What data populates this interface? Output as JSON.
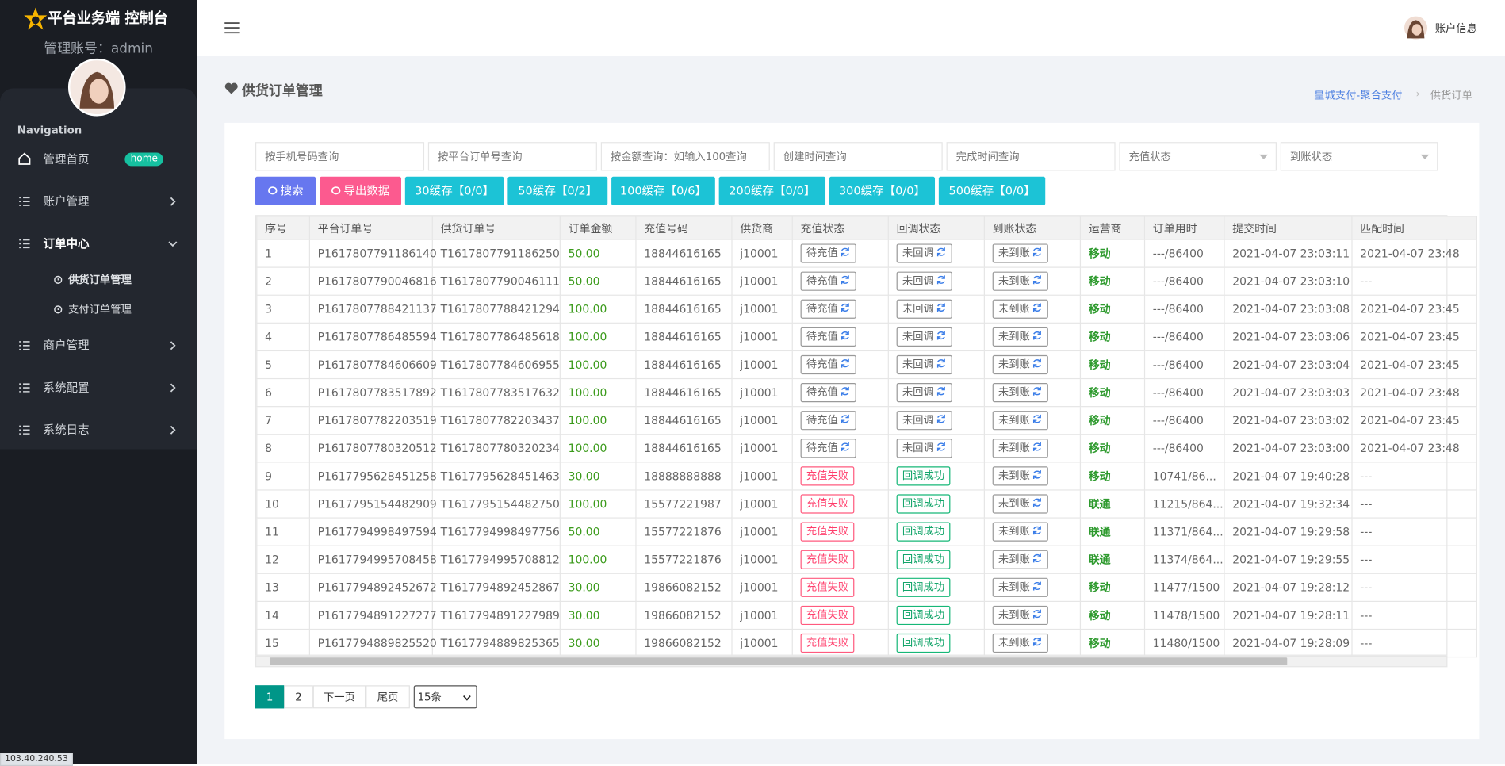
{
  "sidebar": {
    "brand": "平台业务端 控制台",
    "account": "管理账号：admin",
    "nav_title": "Navigation",
    "menu": [
      {
        "label": "管理首页",
        "badge": "home"
      },
      {
        "label": "账户管理"
      },
      {
        "label": "订单中心",
        "children": [
          "供货订单管理",
          "支付订单管理"
        ]
      },
      {
        "label": "商户管理"
      },
      {
        "label": "系统配置"
      },
      {
        "label": "系统日志"
      }
    ]
  },
  "topbar": {
    "user": "账户信息"
  },
  "page": {
    "title": "供货订单管理",
    "breadcrumb": [
      "皇城支付-聚合支付",
      "供货订单"
    ]
  },
  "filters": {
    "inputs": [
      "按手机号码查询",
      "按平台订单号查询",
      "按金额查询：如输入100查询",
      "创建时间查询",
      "完成时间查询"
    ],
    "selects": [
      "充值状态",
      "到账状态"
    ]
  },
  "buttons": [
    "搜索",
    "导出数据",
    "30缓存【0/0】",
    "50缓存【0/2】",
    "100缓存【0/6】",
    "200缓存【0/0】",
    "300缓存【0/0】",
    "500缓存【0/0】"
  ],
  "table": {
    "columns": [
      "序号",
      "平台订单号",
      "供货订单号",
      "订单金额",
      "充值号码",
      "供货商",
      "充值状态",
      "回调状态",
      "到账状态",
      "运营商",
      "订单用时",
      "提交时间",
      "匹配时间"
    ],
    "rows": [
      [
        "1",
        "P1617807791186140",
        "T1617807791186250",
        "50.00",
        "18844616165",
        "j10001",
        "待充值",
        "未回调",
        "未到账",
        "移动",
        "---/86400",
        "2021-04-07 23:03:11",
        "2021-04-07 23:48"
      ],
      [
        "2",
        "P1617807790046816",
        "T1617807790046111",
        "50.00",
        "18844616165",
        "j10001",
        "待充值",
        "未回调",
        "未到账",
        "移动",
        "---/86400",
        "2021-04-07 23:03:10",
        "---"
      ],
      [
        "3",
        "P1617807788421137",
        "T1617807788421294",
        "100.00",
        "18844616165",
        "j10001",
        "待充值",
        "未回调",
        "未到账",
        "移动",
        "---/86400",
        "2021-04-07 23:03:08",
        "2021-04-07 23:45"
      ],
      [
        "4",
        "P1617807786485594",
        "T1617807786485618",
        "100.00",
        "18844616165",
        "j10001",
        "待充值",
        "未回调",
        "未到账",
        "移动",
        "---/86400",
        "2021-04-07 23:03:06",
        "2021-04-07 23:45"
      ],
      [
        "5",
        "P1617807784606609",
        "T1617807784606955",
        "100.00",
        "18844616165",
        "j10001",
        "待充值",
        "未回调",
        "未到账",
        "移动",
        "---/86400",
        "2021-04-07 23:03:04",
        "2021-04-07 23:45"
      ],
      [
        "6",
        "P1617807783517892",
        "T1617807783517632",
        "100.00",
        "18844616165",
        "j10001",
        "待充值",
        "未回调",
        "未到账",
        "移动",
        "---/86400",
        "2021-04-07 23:03:03",
        "2021-04-07 23:48"
      ],
      [
        "7",
        "P1617807782203519",
        "T1617807782203437",
        "100.00",
        "18844616165",
        "j10001",
        "待充值",
        "未回调",
        "未到账",
        "移动",
        "---/86400",
        "2021-04-07 23:03:02",
        "2021-04-07 23:45"
      ],
      [
        "8",
        "P1617807780320512",
        "T1617807780320234",
        "100.00",
        "18844616165",
        "j10001",
        "待充值",
        "未回调",
        "未到账",
        "移动",
        "---/86400",
        "2021-04-07 23:03:00",
        "2021-04-07 23:48"
      ],
      [
        "9",
        "P1617795628451258",
        "T1617795628451463",
        "30.00",
        "18888888888",
        "j10001",
        "充值失败",
        "回调成功",
        "未到账",
        "移动",
        "10741/86...",
        "2021-04-07 19:40:28",
        "---"
      ],
      [
        "10",
        "P1617795154482909",
        "T1617795154482750",
        "100.00",
        "15577221987",
        "j10001",
        "充值失败",
        "回调成功",
        "未到账",
        "联通",
        "11215/864...",
        "2021-04-07 19:32:34",
        "---"
      ],
      [
        "11",
        "P1617794998497594",
        "T1617794998497756",
        "50.00",
        "15577221876",
        "j10001",
        "充值失败",
        "回调成功",
        "未到账",
        "联通",
        "11371/864...",
        "2021-04-07 19:29:58",
        "---"
      ],
      [
        "12",
        "P1617794995708458",
        "T1617794995708812",
        "100.00",
        "15577221876",
        "j10001",
        "充值失败",
        "回调成功",
        "未到账",
        "联通",
        "11374/864...",
        "2021-04-07 19:29:55",
        "---"
      ],
      [
        "13",
        "P1617794892452672",
        "T1617794892452867",
        "30.00",
        "19866082152",
        "j10001",
        "充值失败",
        "回调成功",
        "未到账",
        "移动",
        "11477/1500",
        "2021-04-07 19:28:12",
        "---"
      ],
      [
        "14",
        "P1617794891227277",
        "T1617794891227989",
        "30.00",
        "19866082152",
        "j10001",
        "充值失败",
        "回调成功",
        "未到账",
        "移动",
        "11478/1500",
        "2021-04-07 19:28:11",
        "---"
      ],
      [
        "15",
        "P1617794889825520",
        "T1617794889825365",
        "30.00",
        "19866082152",
        "j10001",
        "充值失败",
        "回调成功",
        "未到账",
        "移动",
        "11480/1500",
        "2021-04-07 19:28:09",
        "---"
      ]
    ]
  },
  "pagination": {
    "pages": [
      "1",
      "2"
    ],
    "next": "下一页",
    "last": "尾页",
    "page_size": "15条"
  },
  "status_bar": "103.40.240.53"
}
